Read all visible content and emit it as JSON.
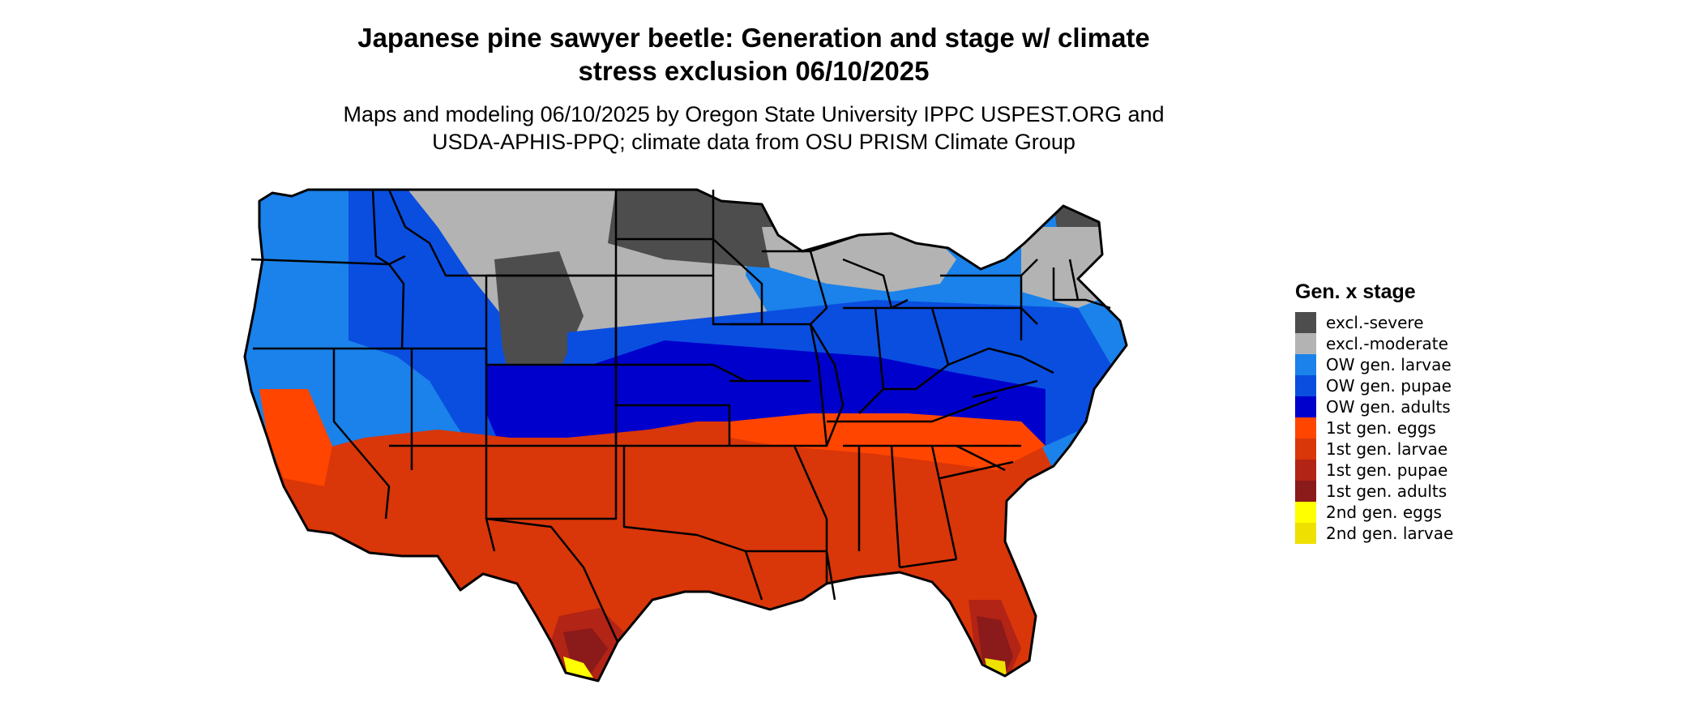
{
  "title_lines": [
    "Japanese pine sawyer beetle: Generation and stage w/ climate",
    "stress exclusion 06/10/2025"
  ],
  "subtitle_lines": [
    "Maps and modeling 06/10/2025 by Oregon State University IPPC USPEST.ORG and",
    "USDA-APHIS-PPQ; climate data from OSU PRISM Climate Group"
  ],
  "legend": {
    "title": "Gen. x stage",
    "items": [
      {
        "label": "excl.-severe",
        "color": "#4d4d4d"
      },
      {
        "label": "excl.-moderate",
        "color": "#b3b3b3"
      },
      {
        "label": "OW gen. larvae",
        "color": "#1a82ea"
      },
      {
        "label": "OW gen. pupae",
        "color": "#0a4ee0"
      },
      {
        "label": "OW gen. adults",
        "color": "#0000cd"
      },
      {
        "label": "1st gen. eggs",
        "color": "#ff4500"
      },
      {
        "label": "1st gen. larvae",
        "color": "#d9360a"
      },
      {
        "label": "1st gen. pupae",
        "color": "#b22415"
      },
      {
        "label": "1st gen. adults",
        "color": "#8b1a1a"
      },
      {
        "label": "2nd gen. eggs",
        "color": "#ffff00"
      },
      {
        "label": "2nd gen. larvae",
        "color": "#eee000"
      }
    ]
  },
  "map": {
    "state_border_color": "#000000",
    "land_outline_color": "#000000"
  }
}
